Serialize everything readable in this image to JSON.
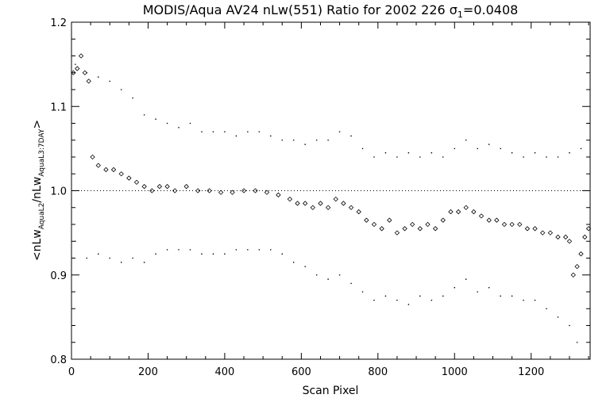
{
  "chart_data": {
    "type": "scatter",
    "title_main": "MODIS/Aqua AV24 nLw(551) Ratio for 2002 226 ",
    "title_sigma": "σ",
    "title_sigma_sub": "1",
    "title_value": "=0.0408",
    "xlabel": "Scan Pixel",
    "ylabel_prefix": "<nLw",
    "ylabel_sub1": "AquaL2",
    "ylabel_mid": "/nLw",
    "ylabel_sub2": "AquaL3:7DAY",
    "ylabel_suffix": ">",
    "xlim": [
      0,
      1354
    ],
    "ylim": [
      0.8,
      1.2
    ],
    "x_ticks": [
      0,
      200,
      400,
      600,
      800,
      1000,
      1200
    ],
    "x_tick_labels": [
      "0",
      "200",
      "400",
      "600",
      "800",
      "1000",
      "1200"
    ],
    "y_ticks": [
      0.8,
      0.9,
      1.0,
      1.1,
      1.2
    ],
    "y_tick_labels": [
      "0.8",
      "0.9",
      "1.0",
      "1.1",
      "1.2"
    ],
    "reference_line": 1.0,
    "series": [
      {
        "role": "mean-ratio",
        "marker": "diamond",
        "x": [
          5,
          15,
          25,
          35,
          45,
          55,
          70,
          90,
          110,
          130,
          150,
          170,
          190,
          210,
          230,
          250,
          270,
          300,
          330,
          360,
          390,
          420,
          450,
          480,
          510,
          540,
          570,
          590,
          610,
          630,
          650,
          670,
          690,
          710,
          730,
          750,
          770,
          790,
          810,
          830,
          850,
          870,
          890,
          910,
          930,
          950,
          970,
          990,
          1010,
          1030,
          1050,
          1070,
          1090,
          1110,
          1130,
          1150,
          1170,
          1190,
          1210,
          1230,
          1250,
          1270,
          1290,
          1300,
          1310,
          1320,
          1330,
          1340,
          1350
        ],
        "y": [
          1.14,
          1.145,
          1.16,
          1.14,
          1.13,
          1.04,
          1.03,
          1.025,
          1.025,
          1.02,
          1.015,
          1.01,
          1.005,
          1.0,
          1.005,
          1.005,
          1.0,
          1.005,
          1.0,
          1.0,
          0.998,
          0.998,
          1.0,
          1.0,
          0.998,
          0.995,
          0.99,
          0.985,
          0.985,
          0.98,
          0.985,
          0.98,
          0.99,
          0.985,
          0.98,
          0.975,
          0.965,
          0.96,
          0.955,
          0.965,
          0.95,
          0.955,
          0.96,
          0.955,
          0.96,
          0.955,
          0.965,
          0.975,
          0.975,
          0.98,
          0.975,
          0.97,
          0.965,
          0.965,
          0.96,
          0.96,
          0.96,
          0.955,
          0.955,
          0.95,
          0.95,
          0.945,
          0.945,
          0.94,
          0.9,
          0.91,
          0.925,
          0.945,
          0.955
        ]
      },
      {
        "role": "upper-bound",
        "marker": "dot",
        "x": [
          10,
          40,
          70,
          100,
          130,
          160,
          190,
          220,
          250,
          280,
          310,
          340,
          370,
          400,
          430,
          460,
          490,
          520,
          550,
          580,
          610,
          640,
          670,
          700,
          730,
          760,
          790,
          820,
          850,
          880,
          910,
          940,
          970,
          1000,
          1030,
          1060,
          1090,
          1120,
          1150,
          1180,
          1210,
          1240,
          1270,
          1300,
          1330,
          1350
        ],
        "y": [
          1.15,
          1.14,
          1.135,
          1.13,
          1.12,
          1.11,
          1.09,
          1.085,
          1.08,
          1.075,
          1.08,
          1.07,
          1.07,
          1.07,
          1.065,
          1.07,
          1.07,
          1.065,
          1.06,
          1.06,
          1.055,
          1.06,
          1.06,
          1.07,
          1.065,
          1.05,
          1.04,
          1.045,
          1.04,
          1.045,
          1.04,
          1.045,
          1.04,
          1.05,
          1.06,
          1.05,
          1.055,
          1.05,
          1.045,
          1.04,
          1.045,
          1.04,
          1.04,
          1.045,
          1.05,
          1.08
        ]
      },
      {
        "role": "lower-bound",
        "marker": "dot",
        "x": [
          10,
          40,
          70,
          100,
          130,
          160,
          190,
          220,
          250,
          280,
          310,
          340,
          370,
          400,
          430,
          460,
          490,
          520,
          550,
          580,
          610,
          640,
          670,
          700,
          730,
          760,
          790,
          820,
          850,
          880,
          910,
          940,
          970,
          1000,
          1030,
          1060,
          1090,
          1120,
          1150,
          1180,
          1210,
          1240,
          1270,
          1300,
          1320
        ],
        "y": [
          0.94,
          0.92,
          0.925,
          0.92,
          0.915,
          0.92,
          0.915,
          0.925,
          0.93,
          0.93,
          0.93,
          0.925,
          0.925,
          0.925,
          0.93,
          0.93,
          0.93,
          0.93,
          0.925,
          0.915,
          0.91,
          0.9,
          0.895,
          0.9,
          0.89,
          0.88,
          0.87,
          0.875,
          0.87,
          0.865,
          0.875,
          0.87,
          0.875,
          0.885,
          0.895,
          0.88,
          0.885,
          0.875,
          0.875,
          0.87,
          0.87,
          0.86,
          0.85,
          0.84,
          0.82
        ]
      }
    ]
  }
}
